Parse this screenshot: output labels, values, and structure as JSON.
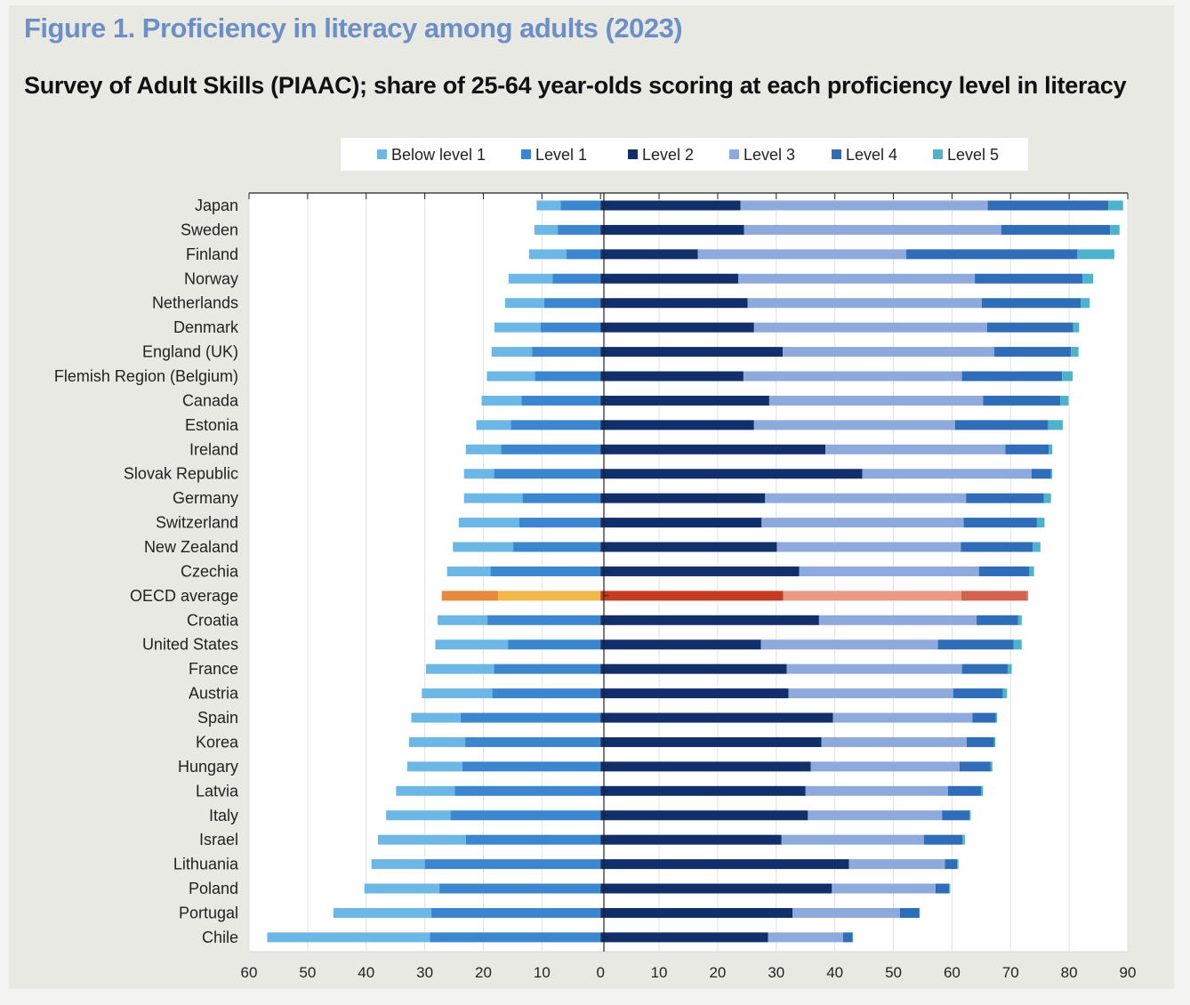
{
  "header": {
    "title": "Figure 1. Proficiency in literacy among adults (2023)",
    "subtitle": "Survey of Adult Skills (PIAAC); share of 25-64 year-olds scoring at each proficiency level in literacy"
  },
  "colors": {
    "below_level_1": "#6cb7e6",
    "level_1": "#3b86cf",
    "level_2": "#112f6b",
    "level_3": "#8ea9db",
    "level_4": "#2f6db9",
    "level_5": "#4db3cc",
    "oecd_below_level_1": "#e8883a",
    "oecd_level_1": "#f2b84b",
    "oecd_level_2": "#c63c22",
    "oecd_level_3": "#eb9a83",
    "oecd_level_4": "#d1634f",
    "oecd_level_5": "#e27b66"
  },
  "chart_data": {
    "type": "bar",
    "orientation": "horizontal-stacked-diverging",
    "xlim": [
      -60,
      90
    ],
    "x_ticks": [
      -60,
      -50,
      -40,
      -30,
      -20,
      -10,
      0,
      10,
      20,
      30,
      40,
      50,
      60,
      70,
      80,
      90
    ],
    "x_tick_labels": [
      "60",
      "50",
      "40",
      "30",
      "20",
      "10",
      "0",
      "10",
      "20",
      "30",
      "40",
      "50",
      "60",
      "70",
      "80",
      "90"
    ],
    "grid": true,
    "legend_position": "top",
    "legend": [
      "Below level 1",
      "Level 1",
      "Level 2",
      "Level 3",
      "Level 4",
      "Level 5"
    ],
    "highlight_category": "OECD average",
    "categories": [
      "Japan",
      "Sweden",
      "Finland",
      "Norway",
      "Netherlands",
      "Denmark",
      "England (UK)",
      "Flemish Region (Belgium)",
      "Canada",
      "Estonia",
      "Ireland",
      "Slovak Republic",
      "Germany",
      "Switzerland",
      "New Zealand",
      "Czechia",
      "OECD average",
      "Croatia",
      "United States",
      "France",
      "Austria",
      "Spain",
      "Korea",
      "Hungary",
      "Latvia",
      "Italy",
      "Israel",
      "Lithuania",
      "Poland",
      "Portugal",
      "Chile"
    ],
    "series": [
      {
        "name": "Below level 1",
        "side": "left",
        "values": [
          4.1,
          4.0,
          6.4,
          7.5,
          6.7,
          7.9,
          6.9,
          8.2,
          6.8,
          5.9,
          6.0,
          5.1,
          10.0,
          10.3,
          10.3,
          7.4,
          9.6,
          8.5,
          12.4,
          11.6,
          12.0,
          8.4,
          9.6,
          9.4,
          10.0,
          11.0,
          15.0,
          9.1,
          12.8,
          16.7,
          27.8
        ]
      },
      {
        "name": "Level 1",
        "side": "left",
        "values": [
          6.8,
          7.3,
          5.8,
          8.2,
          9.6,
          10.2,
          11.7,
          11.2,
          13.5,
          15.3,
          17.0,
          18.2,
          13.3,
          13.9,
          14.9,
          18.8,
          17.5,
          19.3,
          15.8,
          18.2,
          18.5,
          23.9,
          23.1,
          23.6,
          24.9,
          25.6,
          23.0,
          30.0,
          27.5,
          28.9,
          29.1
        ]
      },
      {
        "name": "Level 2",
        "side": "right",
        "values": [
          23.9,
          24.5,
          16.6,
          23.5,
          25.1,
          26.2,
          31.1,
          24.4,
          28.8,
          26.2,
          38.4,
          44.7,
          28.1,
          27.5,
          30.1,
          33.9,
          31.2,
          37.3,
          27.4,
          31.8,
          32.1,
          39.7,
          37.7,
          35.9,
          35.0,
          35.4,
          30.9,
          42.4,
          39.5,
          32.8,
          28.6
        ]
      },
      {
        "name": "Level 3",
        "side": "right",
        "values": [
          42.2,
          43.9,
          35.6,
          40.4,
          40.0,
          39.8,
          36.1,
          37.3,
          36.5,
          34.3,
          30.7,
          28.9,
          34.3,
          34.5,
          31.4,
          30.7,
          30.4,
          26.9,
          30.2,
          29.9,
          28.1,
          23.8,
          24.8,
          25.4,
          24.3,
          22.9,
          24.3,
          16.4,
          17.7,
          18.3,
          12.8
        ]
      },
      {
        "name": "Level 4",
        "side": "right",
        "values": [
          20.6,
          18.6,
          29.2,
          18.4,
          16.9,
          14.7,
          13.1,
          17.1,
          13.2,
          15.9,
          7.4,
          3.3,
          13.3,
          12.5,
          12.3,
          8.6,
          11.2,
          7.1,
          12.9,
          7.8,
          8.5,
          4.0,
          4.7,
          5.3,
          5.7,
          4.7,
          6.6,
          2.1,
          2.3,
          3.3,
          1.6
        ]
      },
      {
        "name": "Level 5",
        "side": "right",
        "values": [
          2.5,
          1.6,
          6.3,
          1.8,
          1.5,
          1.0,
          1.3,
          1.8,
          1.4,
          2.5,
          0.6,
          0.2,
          1.2,
          1.3,
          1.3,
          0.8,
          0.2,
          0.6,
          1.4,
          0.7,
          0.7,
          0.2,
          0.2,
          0.3,
          0.3,
          0.2,
          0.4,
          0.2,
          0.2,
          0.1,
          0.1
        ]
      }
    ]
  }
}
